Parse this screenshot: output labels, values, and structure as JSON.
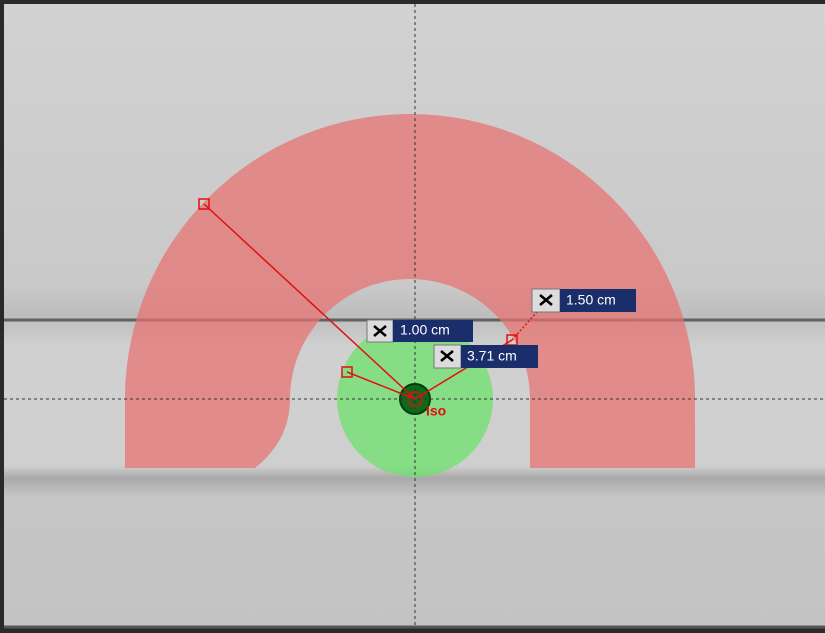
{
  "measurements": [
    {
      "label": "1.00 cm"
    },
    {
      "label": "3.71 cm"
    },
    {
      "label": "1.50 cm"
    }
  ],
  "isocenter": {
    "label": "Iso"
  }
}
